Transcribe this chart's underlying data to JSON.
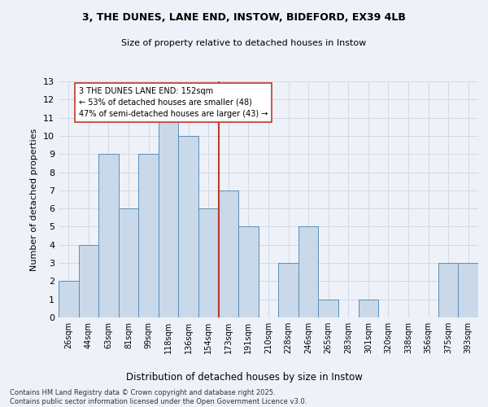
{
  "title1": "3, THE DUNES, LANE END, INSTOW, BIDEFORD, EX39 4LB",
  "title2": "Size of property relative to detached houses in Instow",
  "xlabel": "Distribution of detached houses by size in Instow",
  "ylabel": "Number of detached properties",
  "categories": [
    "26sqm",
    "44sqm",
    "63sqm",
    "81sqm",
    "99sqm",
    "118sqm",
    "136sqm",
    "154sqm",
    "173sqm",
    "191sqm",
    "210sqm",
    "228sqm",
    "246sqm",
    "265sqm",
    "283sqm",
    "301sqm",
    "320sqm",
    "338sqm",
    "356sqm",
    "375sqm",
    "393sqm"
  ],
  "values": [
    2,
    4,
    9,
    6,
    9,
    11,
    10,
    6,
    7,
    5,
    0,
    3,
    5,
    1,
    0,
    1,
    0,
    0,
    0,
    3,
    3
  ],
  "bar_color": "#c9d9ea",
  "bar_edge_color": "#5b8db8",
  "vline_color": "#c0392b",
  "annotation_text": "3 THE DUNES LANE END: 152sqm\n← 53% of detached houses are smaller (48)\n47% of semi-detached houses are larger (43) →",
  "annotation_box_color": "#ffffff",
  "annotation_box_edge": "#c0392b",
  "ylim": [
    0,
    13
  ],
  "yticks": [
    0,
    1,
    2,
    3,
    4,
    5,
    6,
    7,
    8,
    9,
    10,
    11,
    12,
    13
  ],
  "grid_color": "#d0d8e8",
  "footer": "Contains HM Land Registry data © Crown copyright and database right 2025.\nContains public sector information licensed under the Open Government Licence v3.0.",
  "bg_color": "#eef2f8"
}
